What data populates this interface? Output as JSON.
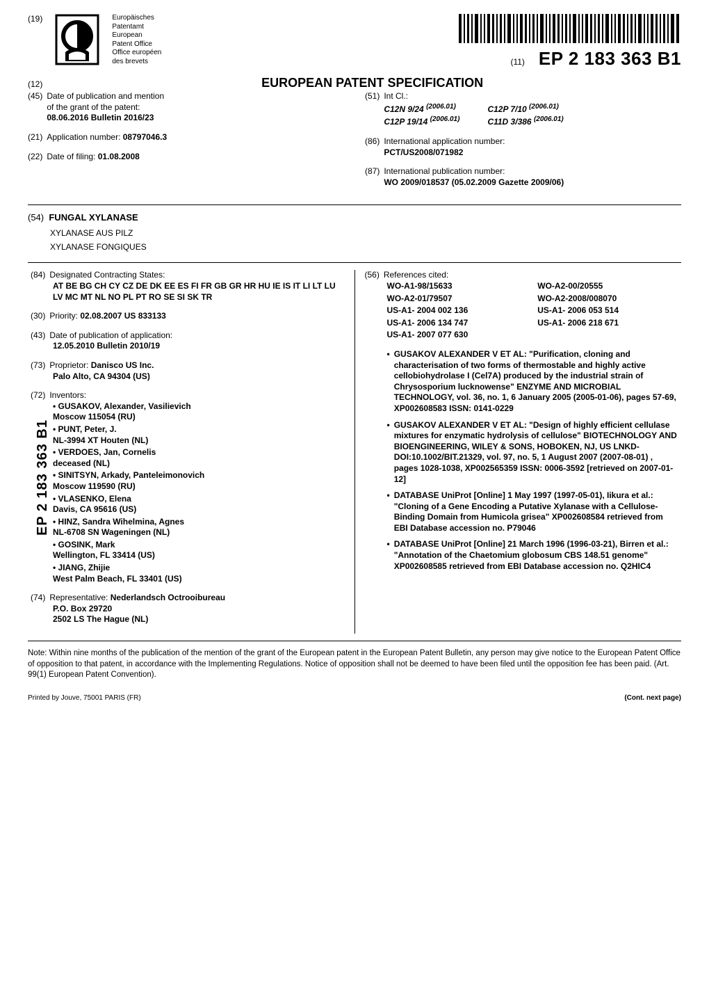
{
  "header": {
    "num19": "(19)",
    "office_labels": [
      "Europäisches",
      "Patentamt",
      "European",
      "Patent Office",
      "Office européen",
      "des brevets"
    ],
    "num11": "(11)",
    "pub_number": "EP 2 183 363 B1",
    "num12": "(12)",
    "doc_title": "EUROPEAN PATENT SPECIFICATION"
  },
  "top": {
    "f45_num": "(45)",
    "f45_l1": "Date of publication and mention",
    "f45_l2": "of the grant of the patent:",
    "f45_l3": "08.06.2016  Bulletin 2016/23",
    "f21_num": "(21)",
    "f21_label": "Application number:",
    "f21_val": "08797046.3",
    "f22_num": "(22)",
    "f22_label": "Date of filing:",
    "f22_val": "01.08.2008",
    "f51_num": "(51)",
    "f51_label": "Int Cl.:",
    "ipc": [
      {
        "cls": "C12N 9/24",
        "ver": "(2006.01)"
      },
      {
        "cls": "C12P 7/10",
        "ver": "(2006.01)"
      },
      {
        "cls": "C12P 19/14",
        "ver": "(2006.01)"
      },
      {
        "cls": "C11D 3/386",
        "ver": "(2006.01)"
      }
    ],
    "f86_num": "(86)",
    "f86_label": "International application number:",
    "f86_val": "PCT/US2008/071982",
    "f87_num": "(87)",
    "f87_label": "International publication number:",
    "f87_val": "WO 2009/018537 (05.02.2009 Gazette 2009/06)"
  },
  "titles": {
    "f54_num": "(54)",
    "main": "FUNGAL XYLANASE",
    "de": "XYLANASE AUS PILZ",
    "fr": "XYLANASE FONGIQUES"
  },
  "left": {
    "f84_num": "(84)",
    "f84_label": "Designated Contracting States:",
    "f84_val": "AT BE BG CH CY CZ DE DK EE ES FI FR GB GR HR HU IE IS IT LI LT LU LV MC MT NL NO PL PT RO SE SI SK TR",
    "f30_num": "(30)",
    "f30_label": "Priority:",
    "f30_val": "02.08.2007  US 833133",
    "f43_num": "(43)",
    "f43_label": "Date of publication of application:",
    "f43_val": "12.05.2010  Bulletin 2010/19",
    "f73_num": "(73)",
    "f73_label": "Proprietor:",
    "f73_name": "Danisco US Inc.",
    "f73_addr": "Palo Alto, CA 94304 (US)",
    "f72_num": "(72)",
    "f72_label": "Inventors:",
    "inventors": [
      {
        "name": "GUSAKOV, Alexander, Vasilievich",
        "addr": "Moscow 115054 (RU)"
      },
      {
        "name": "PUNT, Peter, J.",
        "addr": "NL-3994 XT Houten (NL)"
      },
      {
        "name": "VERDOES, Jan, Cornelis",
        "addr": "deceased (NL)"
      },
      {
        "name": "SINITSYN, Arkady, Panteleimonovich",
        "addr": "Moscow 119590 (RU)"
      },
      {
        "name": "VLASENKO, Elena",
        "addr": "Davis, CA 95616 (US)"
      },
      {
        "name": "HINZ, Sandra Wihelmina, Agnes",
        "addr": "NL-6708 SN Wageningen (NL)"
      },
      {
        "name": "GOSINK, Mark",
        "addr": "Wellington, FL 33414 (US)"
      },
      {
        "name": "JIANG, Zhijie",
        "addr": "West Palm Beach, FL 33401 (US)"
      }
    ],
    "f74_num": "(74)",
    "f74_label": "Representative:",
    "f74_name": "Nederlandsch Octrooibureau",
    "f74_l1": "P.O. Box 29720",
    "f74_l2": "2502 LS The Hague (NL)"
  },
  "right": {
    "f56_num": "(56)",
    "f56_label": "References cited:",
    "refs": [
      "WO-A1-98/15633",
      "WO-A2-00/20555",
      "WO-A2-01/79507",
      "WO-A2-2008/008070",
      "US-A1- 2004 002 136",
      "US-A1- 2006 053 514",
      "US-A1- 2006 134 747",
      "US-A1- 2006 218 671",
      "US-A1- 2007 077 630",
      ""
    ],
    "npl": [
      "GUSAKOV ALEXANDER V ET AL: \"Purification, cloning and characterisation of two forms of thermostable and highly active cellobiohydrolase I (Cel7A) produced by the industrial strain of Chrysosporium lucknowense\" ENZYME AND MICROBIAL TECHNOLOGY, vol. 36, no. 1, 6 January 2005 (2005-01-06), pages 57-69, XP002608583 ISSN: 0141-0229",
      "GUSAKOV ALEXANDER V ET AL: \"Design of highly efficient cellulase mixtures for enzymatic hydrolysis of cellulose\" BIOTECHNOLOGY AND BIOENGINEERING, WILEY & SONS, HOBOKEN, NJ, US LNKD-DOI:10.1002/BIT.21329, vol. 97, no. 5, 1 August 2007 (2007-08-01) , pages 1028-1038, XP002565359 ISSN: 0006-3592 [retrieved on 2007-01-12]",
      "DATABASE UniProt [Online] 1 May 1997 (1997-05-01), Iikura et al.: \"Cloning of a Gene Encoding a Putative Xylanase with a Cellulose-Binding Domain from Humicola grisea\" XP002608584 retrieved from EBI Database accession no. P79046",
      "DATABASE UniProt [Online] 21 March 1996 (1996-03-21), Birren et al.: \"Annotation of the Chaetomium globosum CBS 148.51 genome\" XP002608585 retrieved from EBI Database accession no. Q2HIC4"
    ]
  },
  "note": "Note: Within nine months of the publication of the mention of the grant of the European patent in the European Patent Bulletin, any person may give notice to the European Patent Office of opposition to that patent, in accordance with the Implementing Regulations. Notice of opposition shall not be deemed to have been filed until the opposition fee has been paid. (Art. 99(1) European Patent Convention).",
  "spine": "EP 2 183 363 B1",
  "footer": {
    "printer": "Printed by Jouve, 75001 PARIS (FR)",
    "cont": "(Cont. next page)"
  }
}
